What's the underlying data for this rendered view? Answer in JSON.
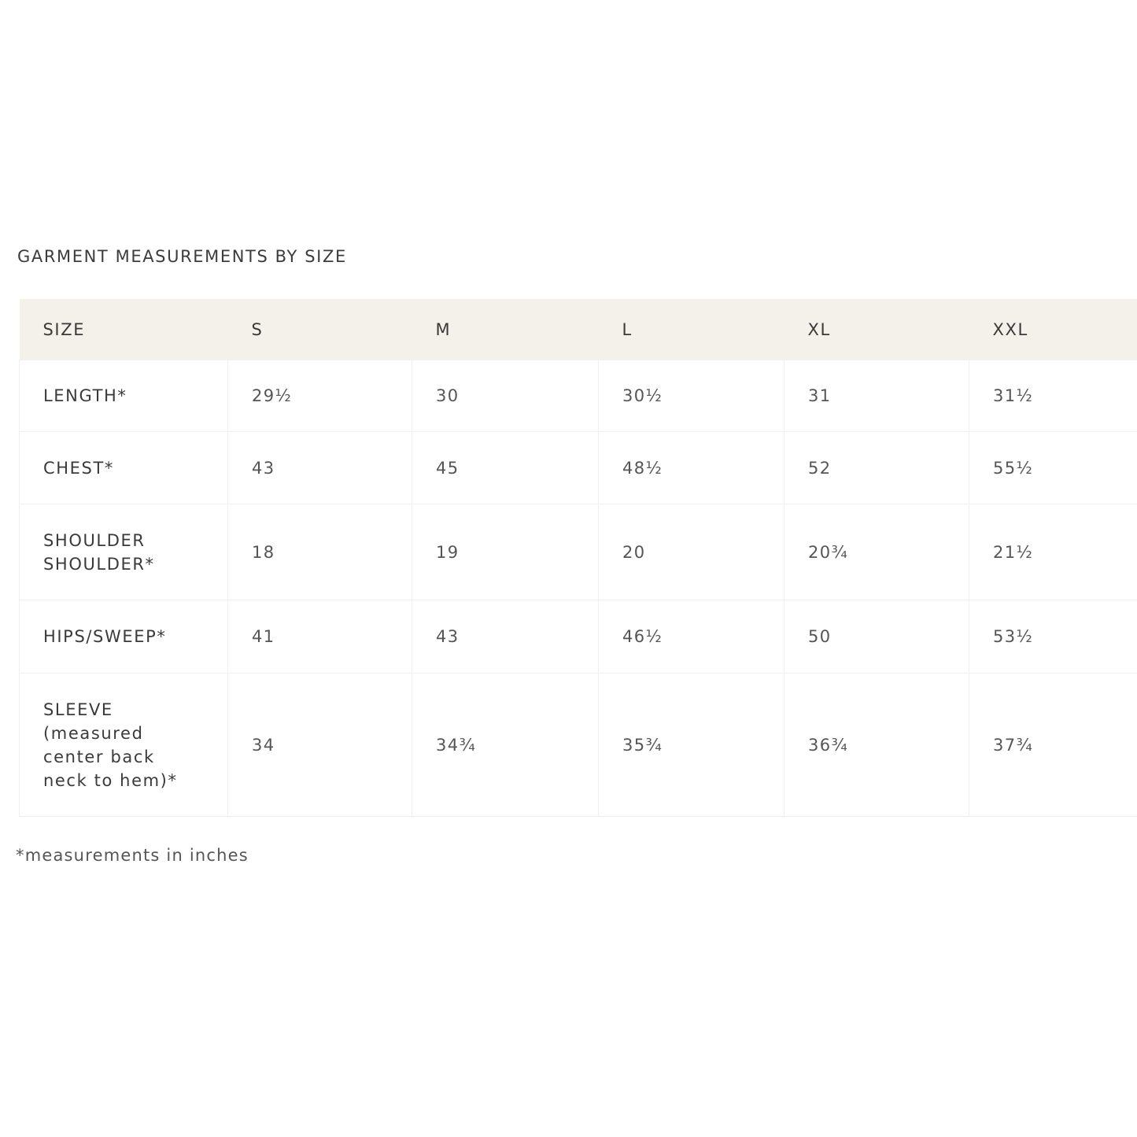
{
  "title": "GARMENT MEASUREMENTS BY SIZE",
  "table": {
    "headers": [
      "SIZE",
      "S",
      "M",
      "L",
      "XL",
      "XXL"
    ],
    "rows": [
      {
        "label": "LENGTH*",
        "values": [
          "29½",
          "30",
          "30½",
          "31",
          "31½"
        ]
      },
      {
        "label": "CHEST*",
        "values": [
          "43",
          "45",
          "48½",
          "52",
          "55½"
        ]
      },
      {
        "label": "SHOULDER SHOULDER*",
        "values": [
          "18",
          "19",
          "20",
          "20¾",
          "21½"
        ]
      },
      {
        "label": "HIPS/SWEEP*",
        "values": [
          "41",
          "43",
          "46½",
          "50",
          "53½"
        ]
      },
      {
        "label": "SLEEVE (measured center back neck to hem)*",
        "values": [
          "34",
          "34¾",
          "35¾",
          "36¾",
          "37¾"
        ]
      }
    ]
  },
  "footnote": "*measurements in inches",
  "colors": {
    "header_bg": "#f4f1ea",
    "text": "#444444",
    "border": "#f0f0f0"
  }
}
